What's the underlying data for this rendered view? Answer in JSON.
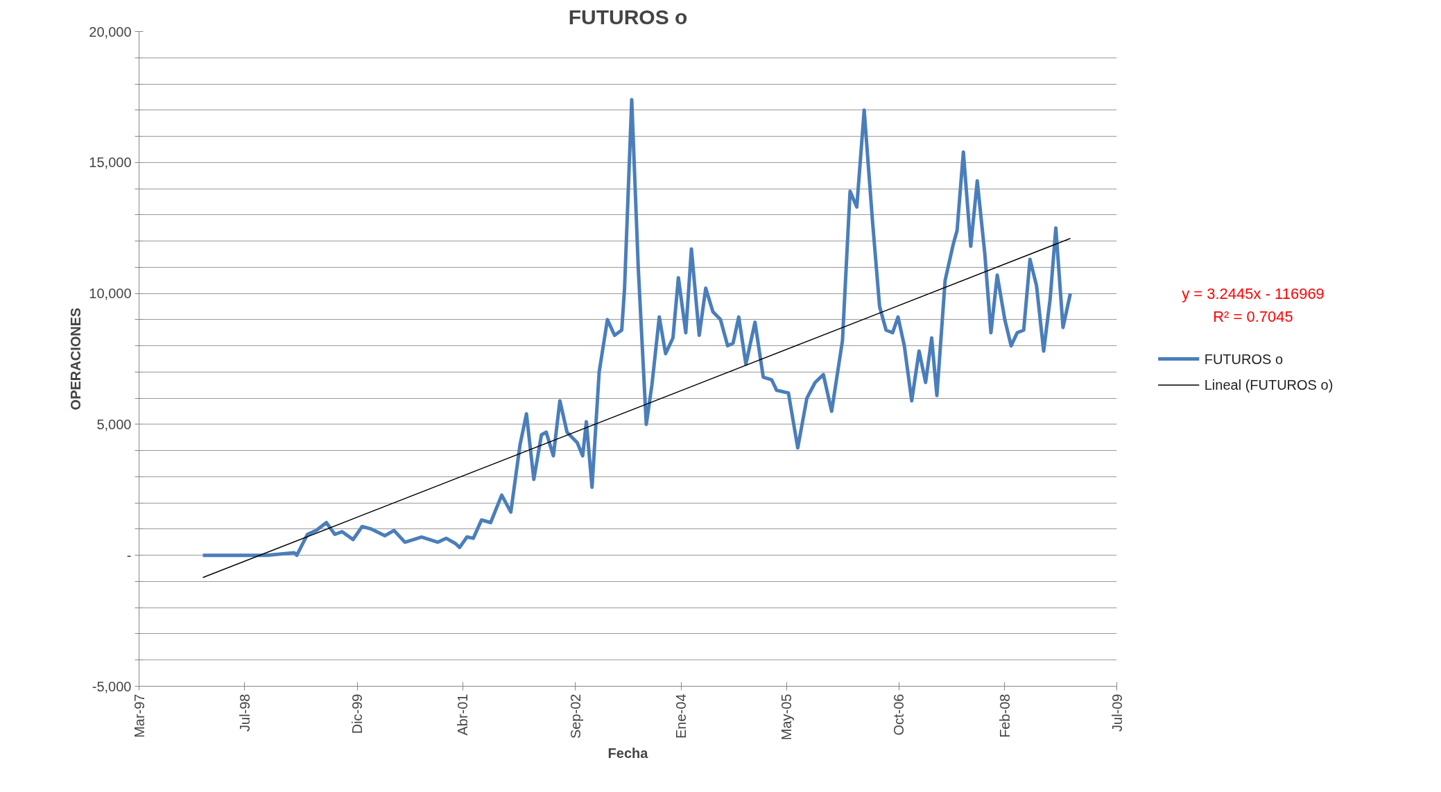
{
  "chart_data": {
    "type": "line",
    "title": "FUTUROS o",
    "xlabel": "Fecha",
    "ylabel": "OPERACIONES",
    "xlim": [
      "1997-03-01",
      "2009-07-01"
    ],
    "xticks": [
      {
        "value": "1997-03-01",
        "label": "Mar-97"
      },
      {
        "value": "1998-07-01",
        "label": "Jul-98"
      },
      {
        "value": "1999-12-01",
        "label": "Dic-99"
      },
      {
        "value": "2001-04-01",
        "label": "Abr-01"
      },
      {
        "value": "2002-09-01",
        "label": "Sep-02"
      },
      {
        "value": "2004-01-01",
        "label": "Ene-04"
      },
      {
        "value": "2005-05-01",
        "label": "May-05"
      },
      {
        "value": "2006-10-01",
        "label": "Oct-06"
      },
      {
        "value": "2008-02-01",
        "label": "Feb-08"
      },
      {
        "value": "2009-07-01",
        "label": "Jul-09"
      }
    ],
    "ylim": [
      -5000,
      20000
    ],
    "yticks": [
      {
        "value": -5000,
        "label": "-5,000"
      },
      {
        "value": -4000,
        "label": null
      },
      {
        "value": -3000,
        "label": null
      },
      {
        "value": -2000,
        "label": null
      },
      {
        "value": -1000,
        "label": null
      },
      {
        "value": 0,
        "label": "-"
      },
      {
        "value": 1000,
        "label": null
      },
      {
        "value": 2000,
        "label": null
      },
      {
        "value": 3000,
        "label": null
      },
      {
        "value": 4000,
        "label": null
      },
      {
        "value": 5000,
        "label": "5,000"
      },
      {
        "value": 6000,
        "label": null
      },
      {
        "value": 7000,
        "label": null
      },
      {
        "value": 8000,
        "label": null
      },
      {
        "value": 9000,
        "label": null
      },
      {
        "value": 10000,
        "label": "10,000"
      },
      {
        "value": 11000,
        "label": null
      },
      {
        "value": 12000,
        "label": null
      },
      {
        "value": 13000,
        "label": null
      },
      {
        "value": 14000,
        "label": null
      },
      {
        "value": 15000,
        "label": "15,000"
      },
      {
        "value": 16000,
        "label": null
      },
      {
        "value": 17000,
        "label": null
      },
      {
        "value": 18000,
        "label": null
      },
      {
        "value": 19000,
        "label": null
      },
      {
        "value": 20000,
        "label": "20,000"
      }
    ],
    "grid": "y",
    "legend": "right",
    "annotations": [
      "y = 3.2445x - 116969",
      "R² = 0.7045"
    ],
    "series": [
      {
        "name": "FUTUROS o",
        "color": "#4a7ebb",
        "x": [
          "1997-12-20",
          "1998-10-10",
          "1999-02-14",
          "1999-02-26",
          "1999-04-16",
          "1999-05-27",
          "1999-07-12",
          "1999-08-20",
          "1999-09-23",
          "1999-11-12",
          "1999-12-24",
          "2000-02-05",
          "2000-04-07",
          "2000-05-19",
          "2000-07-08",
          "2000-09-23",
          "2000-12-07",
          "2001-01-14",
          "2001-02-26",
          "2001-03-17",
          "2001-04-20",
          "2001-05-19",
          "2001-06-26",
          "2001-08-07",
          "2001-09-27",
          "2001-11-08",
          "2001-12-20",
          "2002-01-19",
          "2002-02-22",
          "2002-03-29",
          "2002-04-20",
          "2002-05-23",
          "2002-06-22",
          "2002-07-25",
          "2002-09-10",
          "2002-10-05",
          "2002-10-22",
          "2002-11-17",
          "2002-12-20",
          "2003-01-27",
          "2003-03-01",
          "2003-04-03",
          "2003-04-16",
          "2003-05-19",
          "2003-06-18",
          "2003-07-25",
          "2003-08-20",
          "2003-09-23",
          "2003-10-22",
          "2003-11-25",
          "2003-12-20",
          "2004-01-23",
          "2004-02-18",
          "2004-03-25",
          "2004-04-24",
          "2004-05-27",
          "2004-07-01",
          "2004-08-03",
          "2004-08-28",
          "2004-09-23",
          "2004-10-26",
          "2004-12-07",
          "2005-01-14",
          "2005-02-22",
          "2005-03-17",
          "2005-05-10",
          "2005-06-22",
          "2005-08-03",
          "2005-09-10",
          "2005-10-18",
          "2005-11-25",
          "2006-01-14",
          "2006-02-18",
          "2006-03-21",
          "2006-04-24",
          "2006-06-01",
          "2006-07-04",
          "2006-08-03",
          "2006-09-02",
          "2006-09-27",
          "2006-10-26",
          "2006-11-29",
          "2007-01-02",
          "2007-02-01",
          "2007-03-01",
          "2007-03-25",
          "2007-05-02",
          "2007-06-09",
          "2007-06-26",
          "2007-07-25",
          "2007-08-28",
          "2007-09-27",
          "2007-11-01",
          "2007-11-29",
          "2007-12-28",
          "2008-02-01",
          "2008-03-01",
          "2008-03-29",
          "2008-04-28",
          "2008-05-27",
          "2008-06-26",
          "2008-07-29",
          "2008-08-28",
          "2008-09-23",
          "2008-10-26",
          "2008-11-29"
        ],
        "values": [
          0,
          0,
          100,
          0,
          800,
          950,
          1250,
          800,
          900,
          600,
          1100,
          1000,
          750,
          950,
          500,
          700,
          500,
          650,
          450,
          300,
          700,
          650,
          1350,
          1250,
          2300,
          1650,
          4200,
          5400,
          2900,
          4600,
          4700,
          3800,
          5900,
          4700,
          4300,
          3800,
          5100,
          2600,
          7000,
          9000,
          8400,
          8600,
          10200,
          17400,
          11000,
          5000,
          6500,
          9100,
          7700,
          8300,
          10600,
          8500,
          11700,
          8400,
          10200,
          9300,
          9000,
          8000,
          8100,
          9100,
          7300,
          8900,
          6800,
          6700,
          6300,
          6200,
          4100,
          6000,
          6600,
          6900,
          5500,
          8200,
          13900,
          13300,
          17000,
          12800,
          9500,
          8600,
          8500,
          9100,
          8000,
          5900,
          7800,
          6600,
          8300,
          6100,
          10500,
          11900,
          12400,
          15400,
          11800,
          14300,
          11500,
          8500,
          10700,
          9000,
          8000,
          8500,
          8600,
          11300,
          10300,
          7800,
          9800,
          12500,
          8700,
          10000
        ]
      },
      {
        "name": "Lineal (FUTUROS o)",
        "color": "#000000",
        "type": "line",
        "x": [
          "1997-12-20",
          "2008-11-29"
        ],
        "values": [
          -850,
          12100
        ]
      }
    ]
  }
}
